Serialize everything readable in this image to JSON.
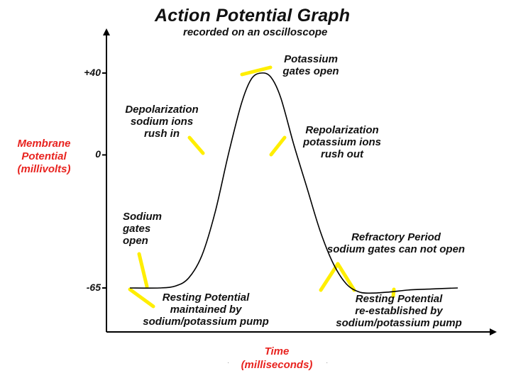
{
  "chart_data": {
    "type": "line",
    "title": "Action Potential Graph",
    "subtitle": "recorded on an oscilloscope",
    "ylabel": "Membrane Potential (millivolts)",
    "xlabel": "Time (milliseconds)",
    "ylim": [
      -90,
      65
    ],
    "xlim": [
      0,
      100
    ],
    "y_ticks": [
      {
        "value": 40,
        "label": "+40"
      },
      {
        "value": 0,
        "label": "0"
      },
      {
        "value": -65,
        "label": "-65"
      }
    ],
    "grid": false,
    "series": [
      {
        "x": [
          0,
          9,
          14,
          18,
          22,
          26,
          30,
          34,
          37,
          40,
          43,
          46,
          50,
          54,
          58,
          62,
          66,
          70,
          74,
          79,
          85,
          92,
          100
        ],
        "y": [
          -65,
          -65,
          -64,
          -60,
          -49,
          -28,
          0,
          25,
          37,
          40,
          38,
          28,
          5,
          -16,
          -37,
          -53,
          -63,
          -67,
          -67.5,
          -67,
          -66,
          -65.5,
          -65
        ]
      }
    ],
    "annotations": [
      {
        "text": "Potassium gates open",
        "lines": [
          "Potassium",
          "gates open"
        ],
        "x": 40,
        "y": 40
      },
      {
        "text": "Depolarization sodium ions rush in",
        "lines": [
          "Depolarization",
          "sodium ions",
          "rush in"
        ],
        "x": 30,
        "y": 0
      },
      {
        "text": "Repolarization potassium ions rush out",
        "lines": [
          "Repolarization",
          "potassium ions",
          "rush out"
        ],
        "x": 51,
        "y": 0
      },
      {
        "text": "Sodium gates open",
        "lines": [
          "Sodium",
          "gates",
          "open"
        ],
        "x": 12,
        "y": -65
      },
      {
        "text": "Refractory Period sodium gates can not open",
        "lines": [
          "Refractory Period",
          "sodium gates can not open"
        ],
        "x": 70,
        "y": -67
      },
      {
        "text": "Resting Potential maintained by sodium/potassium pump",
        "lines": [
          "Resting Potential",
          "maintained by",
          "sodium/potassium pump"
        ],
        "x": 12,
        "y": -65
      },
      {
        "text": "Resting Potential re-established by sodium/potassium pump",
        "lines": [
          "Resting Potential",
          "re-established by",
          "sodium/potassium pump"
        ],
        "x": 83,
        "y": -66
      }
    ],
    "axis_color": "#000000",
    "line_color": "#000000",
    "label_color": "#e8231f",
    "pointer_color": "#ffee00"
  }
}
